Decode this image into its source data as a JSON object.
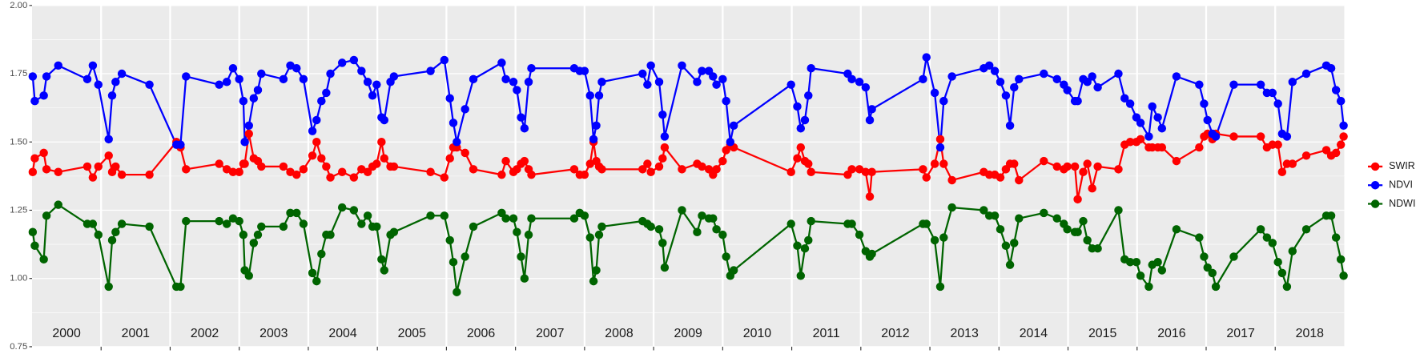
{
  "chart_data": {
    "type": "line",
    "x": [
      2000.01,
      2000.04,
      2000.17,
      2000.21,
      2000.38,
      2000.8,
      2000.88,
      2000.96,
      2001.11,
      2001.16,
      2001.21,
      2001.3,
      2001.7,
      2002.09,
      2002.15,
      2002.23,
      2002.71,
      2002.82,
      2002.91,
      2003.0,
      2003.06,
      2003.08,
      2003.14,
      2003.21,
      2003.27,
      2003.32,
      2003.64,
      2003.74,
      2003.83,
      2003.93,
      2004.06,
      2004.12,
      2004.19,
      2004.26,
      2004.32,
      2004.49,
      2004.66,
      2004.77,
      2004.86,
      2004.93,
      2004.99,
      2005.06,
      2005.1,
      2005.19,
      2005.24,
      2005.77,
      2005.97,
      2006.05,
      2006.1,
      2006.15,
      2006.27,
      2006.39,
      2006.8,
      2006.86,
      2006.97,
      2007.02,
      2007.08,
      2007.13,
      2007.19,
      2007.23,
      2007.85,
      2007.93,
      2008.0,
      2008.08,
      2008.13,
      2008.17,
      2008.21,
      2008.25,
      2008.84,
      2008.91,
      2008.96,
      2009.08,
      2009.13,
      2009.16,
      2009.41,
      2009.63,
      2009.7,
      2009.8,
      2009.86,
      2009.91,
      2010.0,
      2010.05,
      2010.11,
      2010.16,
      2010.99,
      2011.08,
      2011.13,
      2011.19,
      2011.24,
      2011.28,
      2011.81,
      2011.87,
      2011.98,
      2012.07,
      2012.13,
      2012.16,
      2012.9,
      2012.95,
      2013.07,
      2013.15,
      2013.2,
      2013.32,
      2013.78,
      2013.86,
      2013.94,
      2014.02,
      2014.1,
      2014.16,
      2014.22,
      2014.29,
      2014.65,
      2014.84,
      2014.94,
      2014.99,
      2015.1,
      2015.14,
      2015.22,
      2015.28,
      2015.35,
      2015.43,
      2015.73,
      2015.82,
      2015.9,
      2015.99,
      2016.05,
      2016.17,
      2016.22,
      2016.3,
      2016.36,
      2016.57,
      2016.9,
      2016.97,
      2017.02,
      2017.09,
      2017.14,
      2017.4,
      2017.79,
      2017.88,
      2017.96,
      2018.04,
      2018.1,
      2018.17,
      2018.25,
      2018.45,
      2018.74,
      2018.81,
      2018.88,
      2018.95,
      2018.99
    ],
    "series": [
      {
        "name": "SWIR",
        "color": "#ff0000",
        "values": [
          1.39,
          1.44,
          1.46,
          1.4,
          1.39,
          1.41,
          1.37,
          1.41,
          1.45,
          1.39,
          1.41,
          1.38,
          1.38,
          1.5,
          1.48,
          1.4,
          1.42,
          1.4,
          1.39,
          1.39,
          1.42,
          1.42,
          1.53,
          1.44,
          1.43,
          1.41,
          1.41,
          1.39,
          1.38,
          1.4,
          1.45,
          1.5,
          1.44,
          1.41,
          1.37,
          1.39,
          1.37,
          1.4,
          1.39,
          1.41,
          1.42,
          1.5,
          1.44,
          1.41,
          1.41,
          1.39,
          1.37,
          1.44,
          1.48,
          1.48,
          1.46,
          1.4,
          1.38,
          1.43,
          1.39,
          1.4,
          1.42,
          1.43,
          1.4,
          1.38,
          1.4,
          1.38,
          1.38,
          1.42,
          1.5,
          1.43,
          1.41,
          1.4,
          1.4,
          1.42,
          1.39,
          1.41,
          1.44,
          1.48,
          1.4,
          1.42,
          1.41,
          1.4,
          1.38,
          1.4,
          1.43,
          1.47,
          1.49,
          1.48,
          1.39,
          1.44,
          1.48,
          1.43,
          1.42,
          1.39,
          1.38,
          1.4,
          1.4,
          1.39,
          1.3,
          1.39,
          1.4,
          1.37,
          1.42,
          1.51,
          1.42,
          1.36,
          1.39,
          1.38,
          1.38,
          1.37,
          1.4,
          1.42,
          1.42,
          1.36,
          1.43,
          1.41,
          1.4,
          1.41,
          1.41,
          1.29,
          1.39,
          1.42,
          1.33,
          1.41,
          1.4,
          1.49,
          1.5,
          1.5,
          1.51,
          1.48,
          1.48,
          1.48,
          1.48,
          1.43,
          1.48,
          1.52,
          1.53,
          1.51,
          1.53,
          1.52,
          1.52,
          1.48,
          1.49,
          1.49,
          1.39,
          1.42,
          1.42,
          1.45,
          1.47,
          1.45,
          1.46,
          1.49,
          1.52
        ]
      },
      {
        "name": "NDVI",
        "color": "#0000ff",
        "values": [
          1.74,
          1.65,
          1.67,
          1.74,
          1.78,
          1.73,
          1.78,
          1.71,
          1.51,
          1.67,
          1.72,
          1.75,
          1.71,
          1.49,
          1.49,
          1.74,
          1.71,
          1.72,
          1.77,
          1.73,
          1.65,
          1.5,
          1.56,
          1.66,
          1.69,
          1.75,
          1.73,
          1.78,
          1.77,
          1.73,
          1.54,
          1.58,
          1.65,
          1.68,
          1.75,
          1.79,
          1.8,
          1.76,
          1.72,
          1.67,
          1.71,
          1.59,
          1.58,
          1.72,
          1.74,
          1.76,
          1.8,
          1.66,
          1.57,
          1.5,
          1.62,
          1.73,
          1.79,
          1.73,
          1.72,
          1.69,
          1.59,
          1.55,
          1.72,
          1.77,
          1.77,
          1.76,
          1.76,
          1.67,
          1.51,
          1.56,
          1.67,
          1.72,
          1.75,
          1.71,
          1.78,
          1.72,
          1.6,
          1.52,
          1.78,
          1.72,
          1.76,
          1.76,
          1.74,
          1.71,
          1.73,
          1.65,
          1.5,
          1.56,
          1.71,
          1.63,
          1.55,
          1.58,
          1.67,
          1.77,
          1.75,
          1.73,
          1.72,
          1.7,
          1.58,
          1.62,
          1.73,
          1.81,
          1.68,
          1.48,
          1.65,
          1.74,
          1.77,
          1.78,
          1.76,
          1.72,
          1.67,
          1.56,
          1.7,
          1.73,
          1.75,
          1.73,
          1.71,
          1.69,
          1.65,
          1.65,
          1.73,
          1.72,
          1.74,
          1.7,
          1.75,
          1.66,
          1.64,
          1.59,
          1.57,
          1.52,
          1.63,
          1.59,
          1.55,
          1.74,
          1.71,
          1.64,
          1.58,
          1.53,
          1.52,
          1.71,
          1.71,
          1.68,
          1.68,
          1.64,
          1.53,
          1.52,
          1.72,
          1.75,
          1.78,
          1.77,
          1.69,
          1.65,
          1.56
        ]
      },
      {
        "name": "NDWI",
        "color": "#006400",
        "values": [
          1.17,
          1.12,
          1.07,
          1.23,
          1.27,
          1.2,
          1.2,
          1.16,
          0.97,
          1.14,
          1.17,
          1.2,
          1.19,
          0.97,
          0.97,
          1.21,
          1.21,
          1.2,
          1.22,
          1.21,
          1.16,
          1.03,
          1.01,
          1.13,
          1.16,
          1.19,
          1.19,
          1.24,
          1.24,
          1.2,
          1.02,
          0.99,
          1.09,
          1.16,
          1.16,
          1.26,
          1.25,
          1.2,
          1.23,
          1.19,
          1.19,
          1.07,
          1.03,
          1.16,
          1.17,
          1.23,
          1.23,
          1.14,
          1.06,
          0.95,
          1.08,
          1.19,
          1.24,
          1.22,
          1.22,
          1.17,
          1.08,
          1.0,
          1.16,
          1.22,
          1.22,
          1.24,
          1.23,
          1.15,
          0.99,
          1.03,
          1.16,
          1.19,
          1.21,
          1.2,
          1.19,
          1.18,
          1.13,
          1.04,
          1.25,
          1.17,
          1.23,
          1.22,
          1.22,
          1.18,
          1.16,
          1.08,
          1.01,
          1.03,
          1.2,
          1.12,
          1.01,
          1.11,
          1.14,
          1.21,
          1.2,
          1.2,
          1.16,
          1.1,
          1.08,
          1.09,
          1.2,
          1.2,
          1.14,
          0.97,
          1.15,
          1.26,
          1.25,
          1.23,
          1.23,
          1.18,
          1.12,
          1.05,
          1.13,
          1.22,
          1.24,
          1.22,
          1.2,
          1.18,
          1.17,
          1.17,
          1.21,
          1.14,
          1.11,
          1.11,
          1.25,
          1.07,
          1.06,
          1.06,
          1.01,
          0.97,
          1.05,
          1.06,
          1.03,
          1.18,
          1.15,
          1.08,
          1.04,
          1.02,
          0.97,
          1.08,
          1.18,
          1.15,
          1.13,
          1.06,
          1.02,
          0.97,
          1.1,
          1.18,
          1.23,
          1.23,
          1.15,
          1.07,
          1.01
        ]
      }
    ],
    "xlim": [
      2000,
      2019
    ],
    "xticks": [
      2001,
      2002,
      2003,
      2004,
      2005,
      2006,
      2007,
      2008,
      2009,
      2010,
      2011,
      2012,
      2013,
      2014,
      2015,
      2016,
      2017,
      2018
    ],
    "year_labels": [
      2000,
      2001,
      2002,
      2003,
      2004,
      2005,
      2006,
      2007,
      2008,
      2009,
      2010,
      2011,
      2012,
      2013,
      2014,
      2015,
      2016,
      2017,
      2018
    ],
    "ylim": [
      0.75,
      2.0
    ],
    "yticks": [
      0.75,
      {
        "value": 1.0,
        "label": "1.00"
      },
      1.25,
      {
        "value": 1.5,
        "label": "1.50"
      },
      1.75,
      {
        "value": 2.0,
        "label": "2.00"
      }
    ],
    "grid": true,
    "legend": "right"
  }
}
